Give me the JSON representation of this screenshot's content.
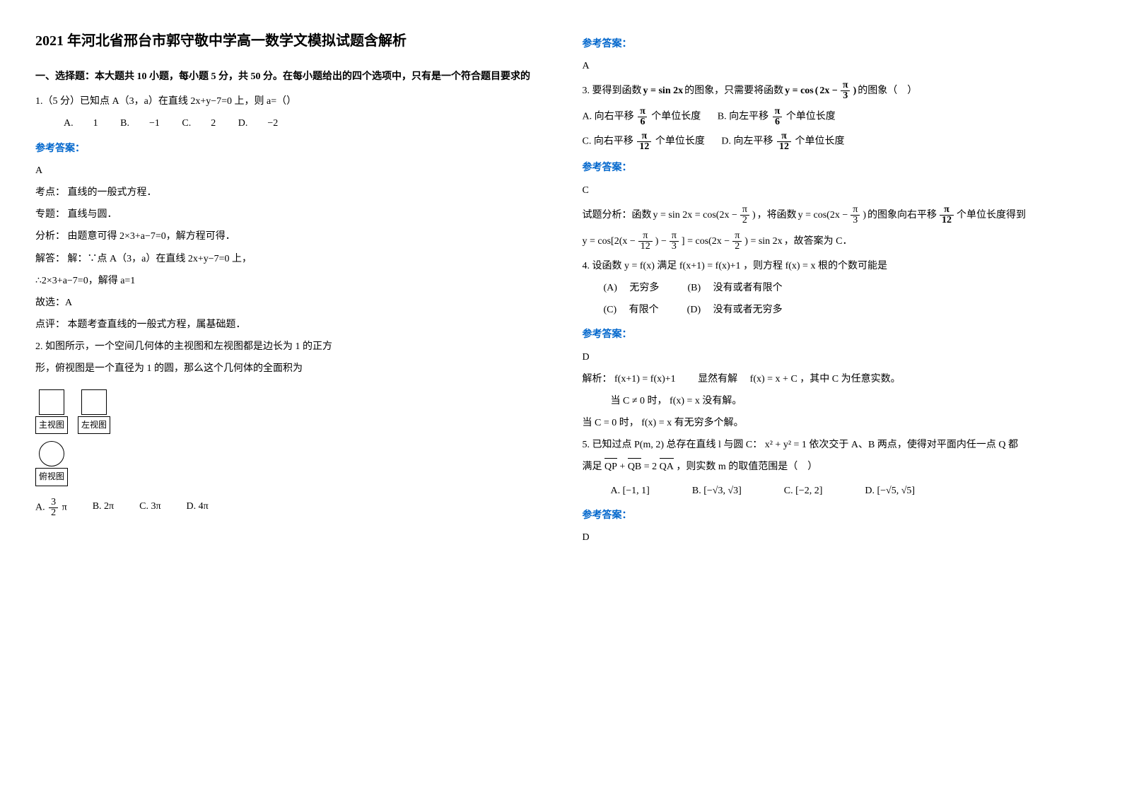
{
  "title": "2021 年河北省邢台市郭守敬中学高一数学文模拟试题含解析",
  "section1_heading": "一、选择题：本大题共 10 小题，每小题 5 分，共 50 分。在每小题给出的四个选项中，只有是一个符合题目要求的",
  "answer_label": "参考答案：",
  "q1": {
    "stem": "1.（5 分）已知点 A（3，a）在直线 2x+y−7=0 上，则 a=（）",
    "opt_a": "A.　　1",
    "opt_b": "B.　　−1",
    "opt_c": "C.　　2",
    "opt_d": "D.　　−2",
    "ans": "A",
    "kd": "考点： 直线的一般式方程．",
    "zt": "专题： 直线与圆．",
    "fx": "分析： 由题意可得 2×3+a−7=0，解方程可得．",
    "jd1": "解答： 解：∵点 A（3，a）在直线 2x+y−7=0 上，",
    "jd2": "∴2×3+a−7=0，解得 a=1",
    "gx": "故选：A",
    "dp": "点评： 本题考查直线的一般式方程，属基础题．"
  },
  "q2": {
    "stem1": "2. 如图所示，一个空间几何体的主视图和左视图都是边长为 1 的正方",
    "stem2": "形，俯视图是一个直径为 1 的圆，那么这个几何体的全面积为",
    "label_main": "主视图",
    "label_left": "左视图",
    "label_top": "俯视图",
    "opt_a_pre": "A. ",
    "opt_a_num": "3",
    "opt_a_den": "2",
    "opt_a_suf": "π",
    "opt_b": "B.  2π",
    "opt_c": "C.  3π",
    "opt_d": "D.  4π",
    "ans": "A"
  },
  "q3": {
    "stem_pre": "3. 要得到函数 ",
    "stem_eq1_lhs": "y = sin 2x",
    "stem_mid": " 的图象，只需要将函数 ",
    "stem_eq2_lhs": "y = cos",
    "stem_eq2_in": "2x − ",
    "stem_eq2_num": "π",
    "stem_eq2_den": "3",
    "stem_suf": " 的图象（　）",
    "opt_a_pre": "A. 向右平移 ",
    "opt_a_num": "π",
    "opt_a_den": "6",
    "opt_a_suf": " 个单位长度",
    "opt_b_pre": "B. 向左平移 ",
    "opt_b_num": "π",
    "opt_b_den": "6",
    "opt_b_suf": " 个单位长度",
    "opt_c_pre": "C. 向右平移 ",
    "opt_c_num": "π",
    "opt_c_den": "12",
    "opt_c_suf": " 个单位长度",
    "opt_d_pre": "D. 向左平移 ",
    "opt_d_num": "π",
    "opt_d_den": "12",
    "opt_d_suf": " 个单位长度",
    "ans": "C",
    "ana_pre": "试题分析：函数 ",
    "ana_eq1": "y = sin 2x = cos(2x − ",
    "ana_eq1_num": "π",
    "ana_eq1_den": "2",
    "ana_eq1_suf": ")",
    "ana_mid": "，将函数 ",
    "ana_eq2": "y = cos(2x − ",
    "ana_eq2_num": "π",
    "ana_eq2_den": "3",
    "ana_eq2_suf": ")",
    "ana_suf_pre": " 的图象向右平移 ",
    "ana_shift_num": "π",
    "ana_shift_den": "12",
    "ana_suf": " 个单位长度得到",
    "ana2_eq1": "y = cos[2(x − ",
    "ana2_eq1_num": "π",
    "ana2_eq1_den": "12",
    "ana2_eq1_mid": ") − ",
    "ana2_eq1_num2": "π",
    "ana2_eq1_den2": "3",
    "ana2_eq1_suf": "] = cos(2x − ",
    "ana2_eq1_num3": "π",
    "ana2_eq1_den3": "2",
    "ana2_eq1_end": ") = sin 2x",
    "ana2_tail": "，故答案为 C．"
  },
  "q4": {
    "stem_pre": "4. 设函数 ",
    "stem_e1": "y = f(x)",
    "stem_mid1": " 满足 ",
    "stem_e2": "f(x+1) = f(x)+1",
    "stem_mid2": "，则方程 ",
    "stem_e3": "f(x) = x",
    "stem_suf": " 根的个数可能是",
    "opt_a": "(A)　 无穷多",
    "opt_b": "(B)　 没有或者有限个",
    "opt_c": "(C)　 有限个",
    "opt_d": "(D)　 没有或者无穷多",
    "ans": "D",
    "ana1_pre": "解析：",
    "ana1_e1": "f(x+1) = f(x)+1",
    "ana1_mid": "　　显然有解　",
    "ana1_e2": "f(x) = x + C",
    "ana1_suf": "，其中 C 为任意实数。",
    "ana2_pre": "当 C ≠ 0 时，",
    "ana2_e": "f(x) = x",
    "ana2_suf": " 没有解。",
    "ana3_pre": "当 C = 0 时，",
    "ana3_e": "f(x) = x",
    "ana3_suf": " 有无穷多个解。"
  },
  "q5": {
    "stem_pre": "5. 已知过点 ",
    "stem_p": "P(m, 2)",
    "stem_mid1": " 总存在直线 l 与圆 C：",
    "stem_circ": "x² + y² = 1",
    "stem_mid2": " 依次交于 A、B 两点，使得对平面内任一点 Q 都",
    "stem2_pre": "满足 ",
    "stem2_v1": "QP",
    "stem2_plus": " + ",
    "stem2_v2": "QB",
    "stem2_eq": " = 2",
    "stem2_v3": "QA",
    "stem2_suf": "，则实数 m 的取值范围是（　）",
    "opt_a": "[−1, 1]",
    "opt_b": "[−√3, √3]",
    "opt_c": "[−2, 2]",
    "opt_d": "[−√5, √5]",
    "opt_a_p": "A.",
    "opt_b_p": "B.",
    "opt_c_p": "C.",
    "opt_d_p": "D.",
    "ans": "D"
  }
}
